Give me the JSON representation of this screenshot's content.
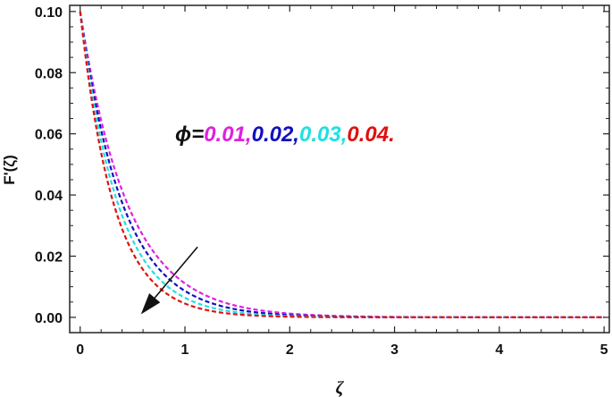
{
  "chart_data": {
    "type": "line",
    "xlabel": "ζ",
    "ylabel": "F'(ζ)",
    "xlim": [
      -0.1,
      5.05
    ],
    "ylim": [
      -0.005,
      0.102
    ],
    "x_ticks": [
      "0",
      "1",
      "2",
      "3",
      "4",
      "5"
    ],
    "y_ticks": [
      "0.00",
      "0.02",
      "0.04",
      "0.06",
      "0.08",
      "0.10"
    ],
    "grid": false,
    "line_style": "dashed",
    "annotation": {
      "symbol": "ϕ",
      "equals": "=",
      "values": [
        {
          "text": "0.01,",
          "color": "#e020e0"
        },
        {
          "text": "0.02,",
          "color": "#1010c0"
        },
        {
          "text": "0.03,",
          "color": "#20e0e0"
        },
        {
          "text": "0.04.",
          "color": "#e01010"
        }
      ]
    },
    "arrow": {
      "from": [
        1.12,
        0.023
      ],
      "to": [
        0.58,
        0.001
      ],
      "meaning": "increasing ϕ"
    },
    "series": [
      {
        "color": "#e020e0",
        "decay_rate": 2.2,
        "x": [
          0,
          0.25,
          0.5,
          0.75,
          1,
          1.5,
          2,
          2.5,
          3,
          3.5,
          4,
          4.5,
          5
        ],
        "y": [
          0.1,
          0.0577,
          0.0333,
          0.0192,
          0.0111,
          0.0037,
          0.0012,
          0.0004,
          0.0001,
          0.0,
          0.0,
          0.0,
          0.0
        ]
      },
      {
        "color": "#1010c0",
        "decay_rate": 2.45,
        "x": [
          0,
          0.25,
          0.5,
          0.75,
          1,
          1.5,
          2,
          2.5,
          3,
          3.5,
          4,
          4.5,
          5
        ],
        "y": [
          0.1,
          0.0542,
          0.0294,
          0.0159,
          0.0086,
          0.0025,
          0.0007,
          0.0002,
          0.0001,
          0.0,
          0.0,
          0.0,
          0.0
        ]
      },
      {
        "color": "#20e0e0",
        "decay_rate": 2.75,
        "x": [
          0,
          0.25,
          0.5,
          0.75,
          1,
          1.5,
          2,
          2.5,
          3,
          3.5,
          4,
          4.5,
          5
        ],
        "y": [
          0.1,
          0.0503,
          0.0253,
          0.0127,
          0.0064,
          0.0016,
          0.0004,
          0.0001,
          0.0,
          0.0,
          0.0,
          0.0,
          0.0
        ]
      },
      {
        "color": "#e01010",
        "decay_rate": 3.1,
        "x": [
          0,
          0.25,
          0.5,
          0.75,
          1,
          1.5,
          2,
          2.5,
          3,
          3.5,
          4,
          4.5,
          5
        ],
        "y": [
          0.1,
          0.0461,
          0.0212,
          0.0098,
          0.0045,
          0.001,
          0.0002,
          0.0,
          0.0,
          0.0,
          0.0,
          0.0,
          0.0
        ]
      }
    ]
  }
}
